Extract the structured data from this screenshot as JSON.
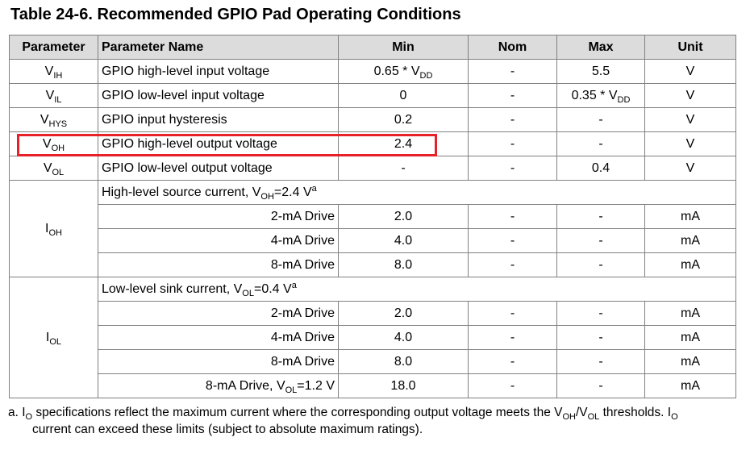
{
  "title": "Table 24-6. Recommended GPIO Pad Operating Conditions",
  "headers": {
    "parameter": "Parameter",
    "name": "Parameter Name",
    "min": "Min",
    "nom": "Nom",
    "max": "Max",
    "unit": "Unit"
  },
  "rows": {
    "vih": {
      "sym_main": "V",
      "sym_sub": "IH",
      "name": "GPIO high-level input voltage",
      "min_pre": "0.65 * V",
      "min_sub": "DD",
      "nom": "-",
      "max": "5.5",
      "unit": "V"
    },
    "vil": {
      "sym_main": "V",
      "sym_sub": "IL",
      "name": "GPIO low-level input voltage",
      "min": "0",
      "nom": "-",
      "max_pre": "0.35 * V",
      "max_sub": "DD",
      "unit": "V"
    },
    "vhys": {
      "sym_main": "V",
      "sym_sub": "HYS",
      "name": "GPIO input hysteresis",
      "min": "0.2",
      "nom": "-",
      "max": "-",
      "unit": "V"
    },
    "voh": {
      "sym_main": "V",
      "sym_sub": "OH",
      "name": "GPIO high-level output voltage",
      "min": "2.4",
      "nom": "-",
      "max": "-",
      "unit": "V"
    },
    "vol": {
      "sym_main": "V",
      "sym_sub": "OL",
      "name": "GPIO low-level output voltage",
      "min": "-",
      "nom": "-",
      "max": "0.4",
      "unit": "V"
    }
  },
  "ioh": {
    "sym_main": "I",
    "sym_sub": "OH",
    "header_pre": "High-level source current, V",
    "header_sub": "OH",
    "header_post": "=2.4 V",
    "header_sup": "a",
    "rows": [
      {
        "drive": "2-mA Drive",
        "min": "2.0",
        "nom": "-",
        "max": "-",
        "unit": "mA"
      },
      {
        "drive": "4-mA Drive",
        "min": "4.0",
        "nom": "-",
        "max": "-",
        "unit": "mA"
      },
      {
        "drive": "8-mA Drive",
        "min": "8.0",
        "nom": "-",
        "max": "-",
        "unit": "mA"
      }
    ]
  },
  "iol": {
    "sym_main": "I",
    "sym_sub": "OL",
    "header_pre": "Low-level sink current, V",
    "header_sub": "OL",
    "header_post": "=0.4 V",
    "header_sup": "a",
    "rows": [
      {
        "drive": "2-mA Drive",
        "min": "2.0",
        "nom": "-",
        "max": "-",
        "unit": "mA"
      },
      {
        "drive": "4-mA Drive",
        "min": "4.0",
        "nom": "-",
        "max": "-",
        "unit": "mA"
      },
      {
        "drive": "8-mA Drive",
        "min": "8.0",
        "nom": "-",
        "max": "-",
        "unit": "mA"
      }
    ],
    "last": {
      "drive_pre": "8-mA Drive, V",
      "drive_sub": "OL",
      "drive_post": "=1.2 V",
      "min": "18.0",
      "nom": "-",
      "max": "-",
      "unit": "mA"
    }
  },
  "footnote": {
    "p1": "a. I",
    "s1": "O",
    "p2": " specifications reflect the maximum current where the corresponding output voltage meets the V",
    "s2": "OH",
    "p3": "/V",
    "s3": "OL",
    "p4": " thresholds. I",
    "s4": "O",
    "line2": "current can exceed these limits (subject to absolute maximum ratings)."
  },
  "highlight_color": "#e8202a"
}
